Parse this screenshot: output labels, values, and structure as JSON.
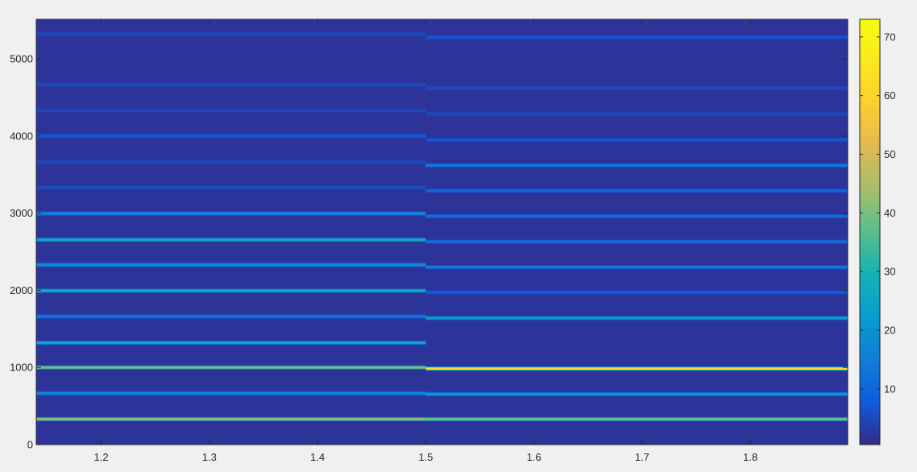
{
  "chart_data": {
    "type": "heatmap",
    "title": "",
    "xlabel": "",
    "ylabel": "",
    "xlim": [
      1.14,
      1.89
    ],
    "ylim": [
      0,
      5512.5
    ],
    "xticks": [
      1.2,
      1.3,
      1.4,
      1.5,
      1.6,
      1.7,
      1.8
    ],
    "xtick_labels": [
      "1.2",
      "1.3",
      "1.4",
      "1.5",
      "1.6",
      "1.7",
      "1.8"
    ],
    "yticks": [
      0,
      1000,
      2000,
      3000,
      4000,
      5000
    ],
    "ytick_labels": [
      "0",
      "1000",
      "2000",
      "3000",
      "4000",
      "5000"
    ],
    "colorbar": {
      "range": [
        0.5,
        73
      ],
      "ticks": [
        10,
        20,
        30,
        40,
        50,
        60,
        70
      ],
      "tick_labels": [
        "10",
        "20",
        "30",
        "40",
        "50",
        "60",
        "70"
      ],
      "colormap": "parula"
    },
    "background_value": 2,
    "segments": [
      {
        "x_range": [
          1.14,
          1.5
        ],
        "harmonics": [
          {
            "freq": 330,
            "value": 42
          },
          {
            "freq": 665,
            "value": 18
          },
          {
            "freq": 1000,
            "value": 40
          },
          {
            "freq": 1320,
            "value": 26
          },
          {
            "freq": 1660,
            "value": 14
          },
          {
            "freq": 1995,
            "value": 28
          },
          {
            "freq": 2330,
            "value": 20
          },
          {
            "freq": 2655,
            "value": 26
          },
          {
            "freq": 2995,
            "value": 18
          },
          {
            "freq": 3330,
            "value": 6
          },
          {
            "freq": 3660,
            "value": 5
          },
          {
            "freq": 4000,
            "value": 8
          },
          {
            "freq": 4330,
            "value": 5
          },
          {
            "freq": 4665,
            "value": 5
          },
          {
            "freq": 5325,
            "value": 5
          }
        ]
      },
      {
        "x_range": [
          1.5,
          1.89
        ],
        "harmonics": [
          {
            "freq": 330,
            "value": 38
          },
          {
            "freq": 655,
            "value": 22
          },
          {
            "freq": 985,
            "value": 62
          },
          {
            "freq": 1640,
            "value": 24
          },
          {
            "freq": 1975,
            "value": 8
          },
          {
            "freq": 2300,
            "value": 14
          },
          {
            "freq": 2630,
            "value": 12
          },
          {
            "freq": 2960,
            "value": 12
          },
          {
            "freq": 3290,
            "value": 10
          },
          {
            "freq": 3620,
            "value": 14
          },
          {
            "freq": 3950,
            "value": 7
          },
          {
            "freq": 4290,
            "value": 5
          },
          {
            "freq": 4620,
            "value": 5
          },
          {
            "freq": 5280,
            "value": 7
          }
        ]
      }
    ],
    "colors": {
      "background": "#f0f0f0",
      "axis": "#262626"
    }
  }
}
